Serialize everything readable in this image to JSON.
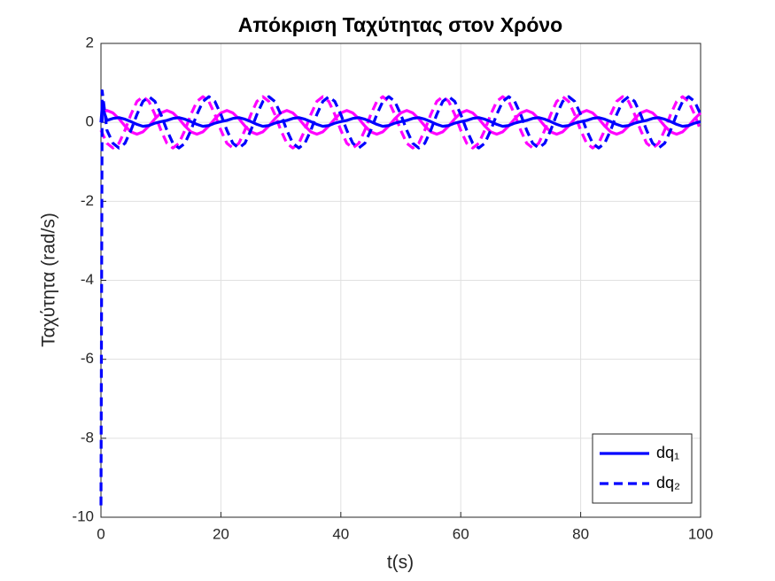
{
  "chart_data": {
    "type": "line",
    "title": "Απόκριση Ταχύτητας στον Χρόνο",
    "xlabel": "t(s)",
    "ylabel": "Ταχύτητα (rad/s)",
    "x": [
      0,
      0.2,
      1,
      2,
      3,
      4,
      5,
      6,
      7,
      8,
      9,
      10,
      11,
      12,
      13,
      14,
      15,
      16,
      17,
      18,
      19,
      20,
      21,
      22,
      23,
      24,
      25,
      26,
      27,
      28,
      29,
      30,
      31,
      32,
      33,
      34,
      35,
      36,
      37,
      38,
      39,
      40,
      41,
      42,
      43,
      44,
      45,
      46,
      47,
      48,
      49,
      50,
      51,
      52,
      53,
      54,
      55,
      56,
      57,
      58,
      59,
      60,
      61,
      62,
      63,
      64,
      65,
      66,
      67,
      68,
      69,
      70,
      71,
      72,
      73,
      74,
      75,
      76,
      77,
      78,
      79,
      80,
      81,
      82,
      83,
      84,
      85,
      86,
      87,
      88,
      89,
      90,
      91,
      92,
      93,
      94,
      95,
      96,
      97,
      98,
      99,
      100
    ],
    "xlim": [
      0,
      100
    ],
    "xticks": [
      0,
      20,
      40,
      60,
      80,
      100
    ],
    "ylim": [
      -10,
      2
    ],
    "yticks": [
      -10,
      -8,
      -6,
      -4,
      -2,
      0,
      2
    ],
    "grid": true,
    "legend": "lower right",
    "series": [
      {
        "color": "#ff00ff",
        "linestyle": "solid",
        "values": [
          0.24,
          0.25,
          0.3,
          0.24,
          0.09,
          -0.09,
          -0.24,
          -0.3,
          -0.24,
          -0.09,
          0.09,
          0.24,
          0.3,
          0.24,
          0.09,
          -0.09,
          -0.24,
          -0.3,
          -0.24,
          -0.09,
          0.09,
          0.24,
          0.3,
          0.24,
          0.09,
          -0.09,
          -0.24,
          -0.3,
          -0.24,
          -0.09,
          0.09,
          0.24,
          0.3,
          0.24,
          0.09,
          -0.09,
          -0.24,
          -0.3,
          -0.24,
          -0.09,
          0.09,
          0.24,
          0.3,
          0.24,
          0.09,
          -0.09,
          -0.24,
          -0.3,
          -0.24,
          -0.09,
          0.09,
          0.24,
          0.3,
          0.24,
          0.09,
          -0.09,
          -0.24,
          -0.3,
          -0.24,
          -0.09,
          0.09,
          0.24,
          0.3,
          0.24,
          0.09,
          -0.09,
          -0.24,
          -0.3,
          -0.24,
          -0.09,
          0.09,
          0.24,
          0.3,
          0.24,
          0.09,
          -0.09,
          -0.24,
          -0.3,
          -0.24,
          -0.09,
          0.09,
          0.24,
          0.3,
          0.24,
          0.09,
          -0.09,
          -0.24,
          -0.3,
          -0.24,
          -0.09,
          0.09,
          0.24,
          0.3,
          0.24,
          0.09,
          -0.09,
          -0.24,
          -0.3,
          -0.24,
          -0.09,
          0.09,
          0.24
        ]
      },
      {
        "color": "#ff00ff",
        "linestyle": "dashed",
        "values": [
          -0.2,
          -0.27,
          -0.53,
          -0.65,
          -0.53,
          -0.2,
          0.2,
          0.53,
          0.65,
          0.53,
          0.2,
          -0.2,
          -0.53,
          -0.65,
          -0.53,
          -0.2,
          0.2,
          0.53,
          0.65,
          0.53,
          0.2,
          -0.2,
          -0.53,
          -0.65,
          -0.53,
          -0.2,
          0.2,
          0.53,
          0.65,
          0.53,
          0.2,
          -0.2,
          -0.53,
          -0.65,
          -0.53,
          -0.2,
          0.2,
          0.53,
          0.65,
          0.53,
          0.2,
          -0.2,
          -0.53,
          -0.65,
          -0.53,
          -0.2,
          0.2,
          0.53,
          0.65,
          0.53,
          0.2,
          -0.2,
          -0.53,
          -0.65,
          -0.53,
          -0.2,
          0.2,
          0.53,
          0.65,
          0.53,
          0.2,
          -0.2,
          -0.53,
          -0.65,
          -0.53,
          -0.2,
          0.2,
          0.53,
          0.65,
          0.53,
          0.2,
          -0.2,
          -0.53,
          -0.65,
          -0.53,
          -0.2,
          0.2,
          0.53,
          0.65,
          0.53,
          0.2,
          -0.2,
          -0.53,
          -0.65,
          -0.53,
          -0.2,
          0.2,
          0.53,
          0.65,
          0.53,
          0.2,
          -0.2,
          -0.53,
          -0.65,
          -0.53,
          -0.2,
          0.2,
          0.53,
          0.65,
          0.53,
          0.2,
          -0.2
        ]
      },
      {
        "name": "dq₁",
        "color": "#0000ff",
        "linestyle": "solid",
        "values": [
          0,
          0.4,
          0.05,
          0.1,
          0.12,
          0.08,
          0.02,
          -0.05,
          -0.1,
          -0.08,
          -0.02,
          0.02,
          0.05,
          0.1,
          0.12,
          0.08,
          0.02,
          -0.05,
          -0.1,
          -0.08,
          -0.02,
          0.02,
          0.05,
          0.1,
          0.12,
          0.08,
          0.02,
          -0.05,
          -0.1,
          -0.08,
          -0.02,
          0.02,
          0.05,
          0.1,
          0.12,
          0.08,
          0.02,
          -0.05,
          -0.1,
          -0.08,
          -0.02,
          0.02,
          0.05,
          0.1,
          0.12,
          0.08,
          0.02,
          -0.05,
          -0.1,
          -0.08,
          -0.02,
          0.02,
          0.05,
          0.1,
          0.12,
          0.08,
          0.02,
          -0.05,
          -0.1,
          -0.08,
          -0.02,
          0.02,
          0.05,
          0.1,
          0.12,
          0.08,
          0.02,
          -0.05,
          -0.1,
          -0.08,
          -0.02,
          0.02,
          0.05,
          0.1,
          0.12,
          0.08,
          0.02,
          -0.05,
          -0.1,
          -0.08,
          -0.02,
          0.02,
          0.05,
          0.1,
          0.12,
          0.08,
          0.02,
          -0.05,
          -0.1,
          -0.08,
          -0.02,
          0.02,
          0.05,
          0.1,
          0.12,
          0.08,
          0.02,
          -0.05,
          -0.1,
          -0.08,
          -0.02,
          0.02
        ]
      },
      {
        "name": "dq₂",
        "color": "#0000ff",
        "linestyle": "dashed",
        "values": [
          -9.7,
          0.8,
          -0.2,
          -0.53,
          -0.65,
          -0.53,
          -0.2,
          0.2,
          0.53,
          0.65,
          0.53,
          0.2,
          -0.2,
          -0.53,
          -0.65,
          -0.53,
          -0.2,
          0.2,
          0.53,
          0.65,
          0.53,
          0.2,
          -0.2,
          -0.53,
          -0.65,
          -0.53,
          -0.2,
          0.2,
          0.53,
          0.65,
          0.53,
          0.2,
          -0.2,
          -0.53,
          -0.65,
          -0.53,
          -0.2,
          0.2,
          0.53,
          0.65,
          0.53,
          0.2,
          -0.2,
          -0.53,
          -0.65,
          -0.53,
          -0.2,
          0.2,
          0.53,
          0.65,
          0.53,
          0.2,
          -0.2,
          -0.53,
          -0.65,
          -0.53,
          -0.2,
          0.2,
          0.53,
          0.65,
          0.53,
          0.2,
          -0.2,
          -0.53,
          -0.65,
          -0.53,
          -0.2,
          0.2,
          0.53,
          0.65,
          0.53,
          0.2,
          -0.2,
          -0.53,
          -0.65,
          -0.53,
          -0.2,
          0.2,
          0.53,
          0.65,
          0.53,
          0.2,
          -0.2,
          -0.53,
          -0.65,
          -0.53,
          -0.2,
          0.2,
          0.53,
          0.65,
          0.53,
          0.2,
          -0.2,
          -0.53,
          -0.65,
          -0.53,
          -0.2,
          0.2,
          0.53,
          0.65,
          0.53,
          0.2
        ]
      }
    ]
  }
}
